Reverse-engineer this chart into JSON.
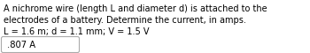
{
  "line1": "A nichrome wire (length L and diameter d) is attached to the",
  "line2": "electrodes of a battery. Determine the current, in amps.",
  "line3": "L = 1.6 m; d = 1.1 mm; V = 1.5 V",
  "answer": ".807 A",
  "bg_color": "#ffffff",
  "text_color": "#000000",
  "box_edge_color": "#aaaaaa",
  "font_size_main": 7.0,
  "font_size_answer": 7.2,
  "font_family": "DejaVu Sans"
}
